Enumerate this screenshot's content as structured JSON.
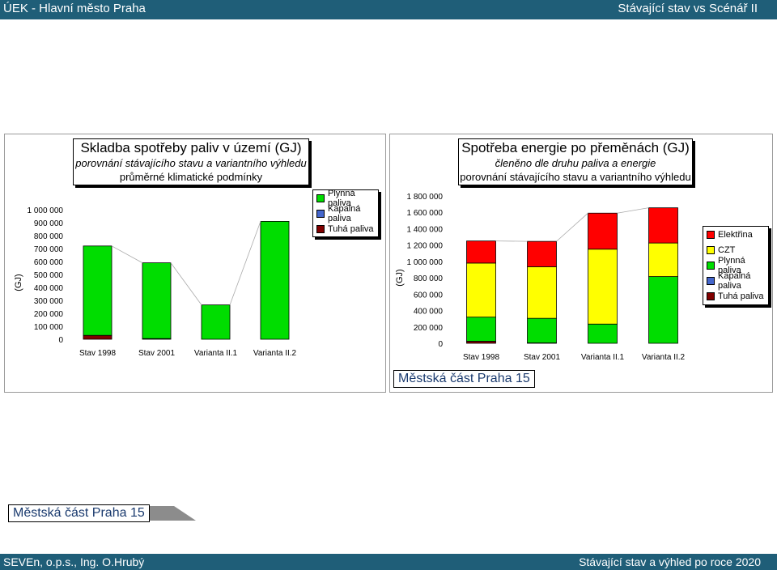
{
  "header": {
    "left": "ÚEK - Hlavní město Praha",
    "right": "Stávající stav vs Scénář II"
  },
  "footer": {
    "left": "SEVEn, o.p.s., Ing. O.Hrubý",
    "right": "Stávající stav a výhled po roce 2020"
  },
  "left_panel": {
    "title": "Skladba spotřeby paliv v území",
    "title_unit": "(GJ)",
    "subtitle1": "porovnání stávajícího stavu a variantního výhledu",
    "subtitle2": "průměrné klimatické podmínky",
    "area_label": "Městská část Praha 15"
  },
  "right_panel": {
    "title": "Spotřeba energie po přeměnách",
    "title_unit": "(GJ)",
    "subtitle1": "členěno dle druhu paliva a energie",
    "subtitle2": "porovnání stávajícího stavu a variantního výhledu",
    "area_label": "Městská část Praha 15"
  },
  "colors": {
    "Plynná paliva": "#00dd00",
    "Kapalná paliva": "#4466cc",
    "Tuhá paliva": "#800000",
    "CZT": "#ffff00",
    "Elektřina": "#ff0000"
  },
  "chart_data": [
    {
      "type": "bar",
      "stacked": true,
      "ylabel": "(GJ)",
      "ylim": [
        0,
        1000000
      ],
      "yticks": [
        "0",
        "100 000",
        "200 000",
        "300 000",
        "400 000",
        "500 000",
        "600 000",
        "700 000",
        "800 000",
        "900 000",
        "1 000 000"
      ],
      "categories": [
        "Stav 1998",
        "Stav 2001",
        "Varianta II.1",
        "Varianta II.2"
      ],
      "series": [
        {
          "name": "Tuhá paliva",
          "values": [
            30000,
            5000,
            0,
            0
          ]
        },
        {
          "name": "Kapalná paliva",
          "values": [
            0,
            0,
            0,
            0
          ]
        },
        {
          "name": "Plynná paliva",
          "values": [
            690000,
            585000,
            265000,
            910000
          ]
        }
      ],
      "legend": [
        "Plynná paliva",
        "Kapalná paliva",
        "Tuhá paliva"
      ],
      "legend_position": "right"
    },
    {
      "type": "bar",
      "stacked": true,
      "ylabel": "(GJ)",
      "ylim": [
        0,
        1800000
      ],
      "yticks": [
        "0",
        "200 000",
        "400 000",
        "600 000",
        "800 000",
        "1 000 000",
        "1 200 000",
        "1 400 000",
        "1 600 000",
        "1 800 000"
      ],
      "categories": [
        "Stav 1998",
        "Stav 2001",
        "Varianta II.1",
        "Varianta II.2"
      ],
      "series": [
        {
          "name": "Tuhá paliva",
          "values": [
            25000,
            5000,
            0,
            0
          ]
        },
        {
          "name": "Kapalná paliva",
          "values": [
            0,
            0,
            0,
            0
          ]
        },
        {
          "name": "Plynná paliva",
          "values": [
            295000,
            300000,
            235000,
            815000
          ]
        },
        {
          "name": "CZT",
          "values": [
            660000,
            630000,
            915000,
            410000
          ]
        },
        {
          "name": "Elektřina",
          "values": [
            270000,
            310000,
            440000,
            430000
          ]
        }
      ],
      "legend": [
        "Elektřina",
        "CZT",
        "Plynná paliva",
        "Kapalná paliva",
        "Tuhá paliva"
      ],
      "legend_position": "right"
    }
  ]
}
